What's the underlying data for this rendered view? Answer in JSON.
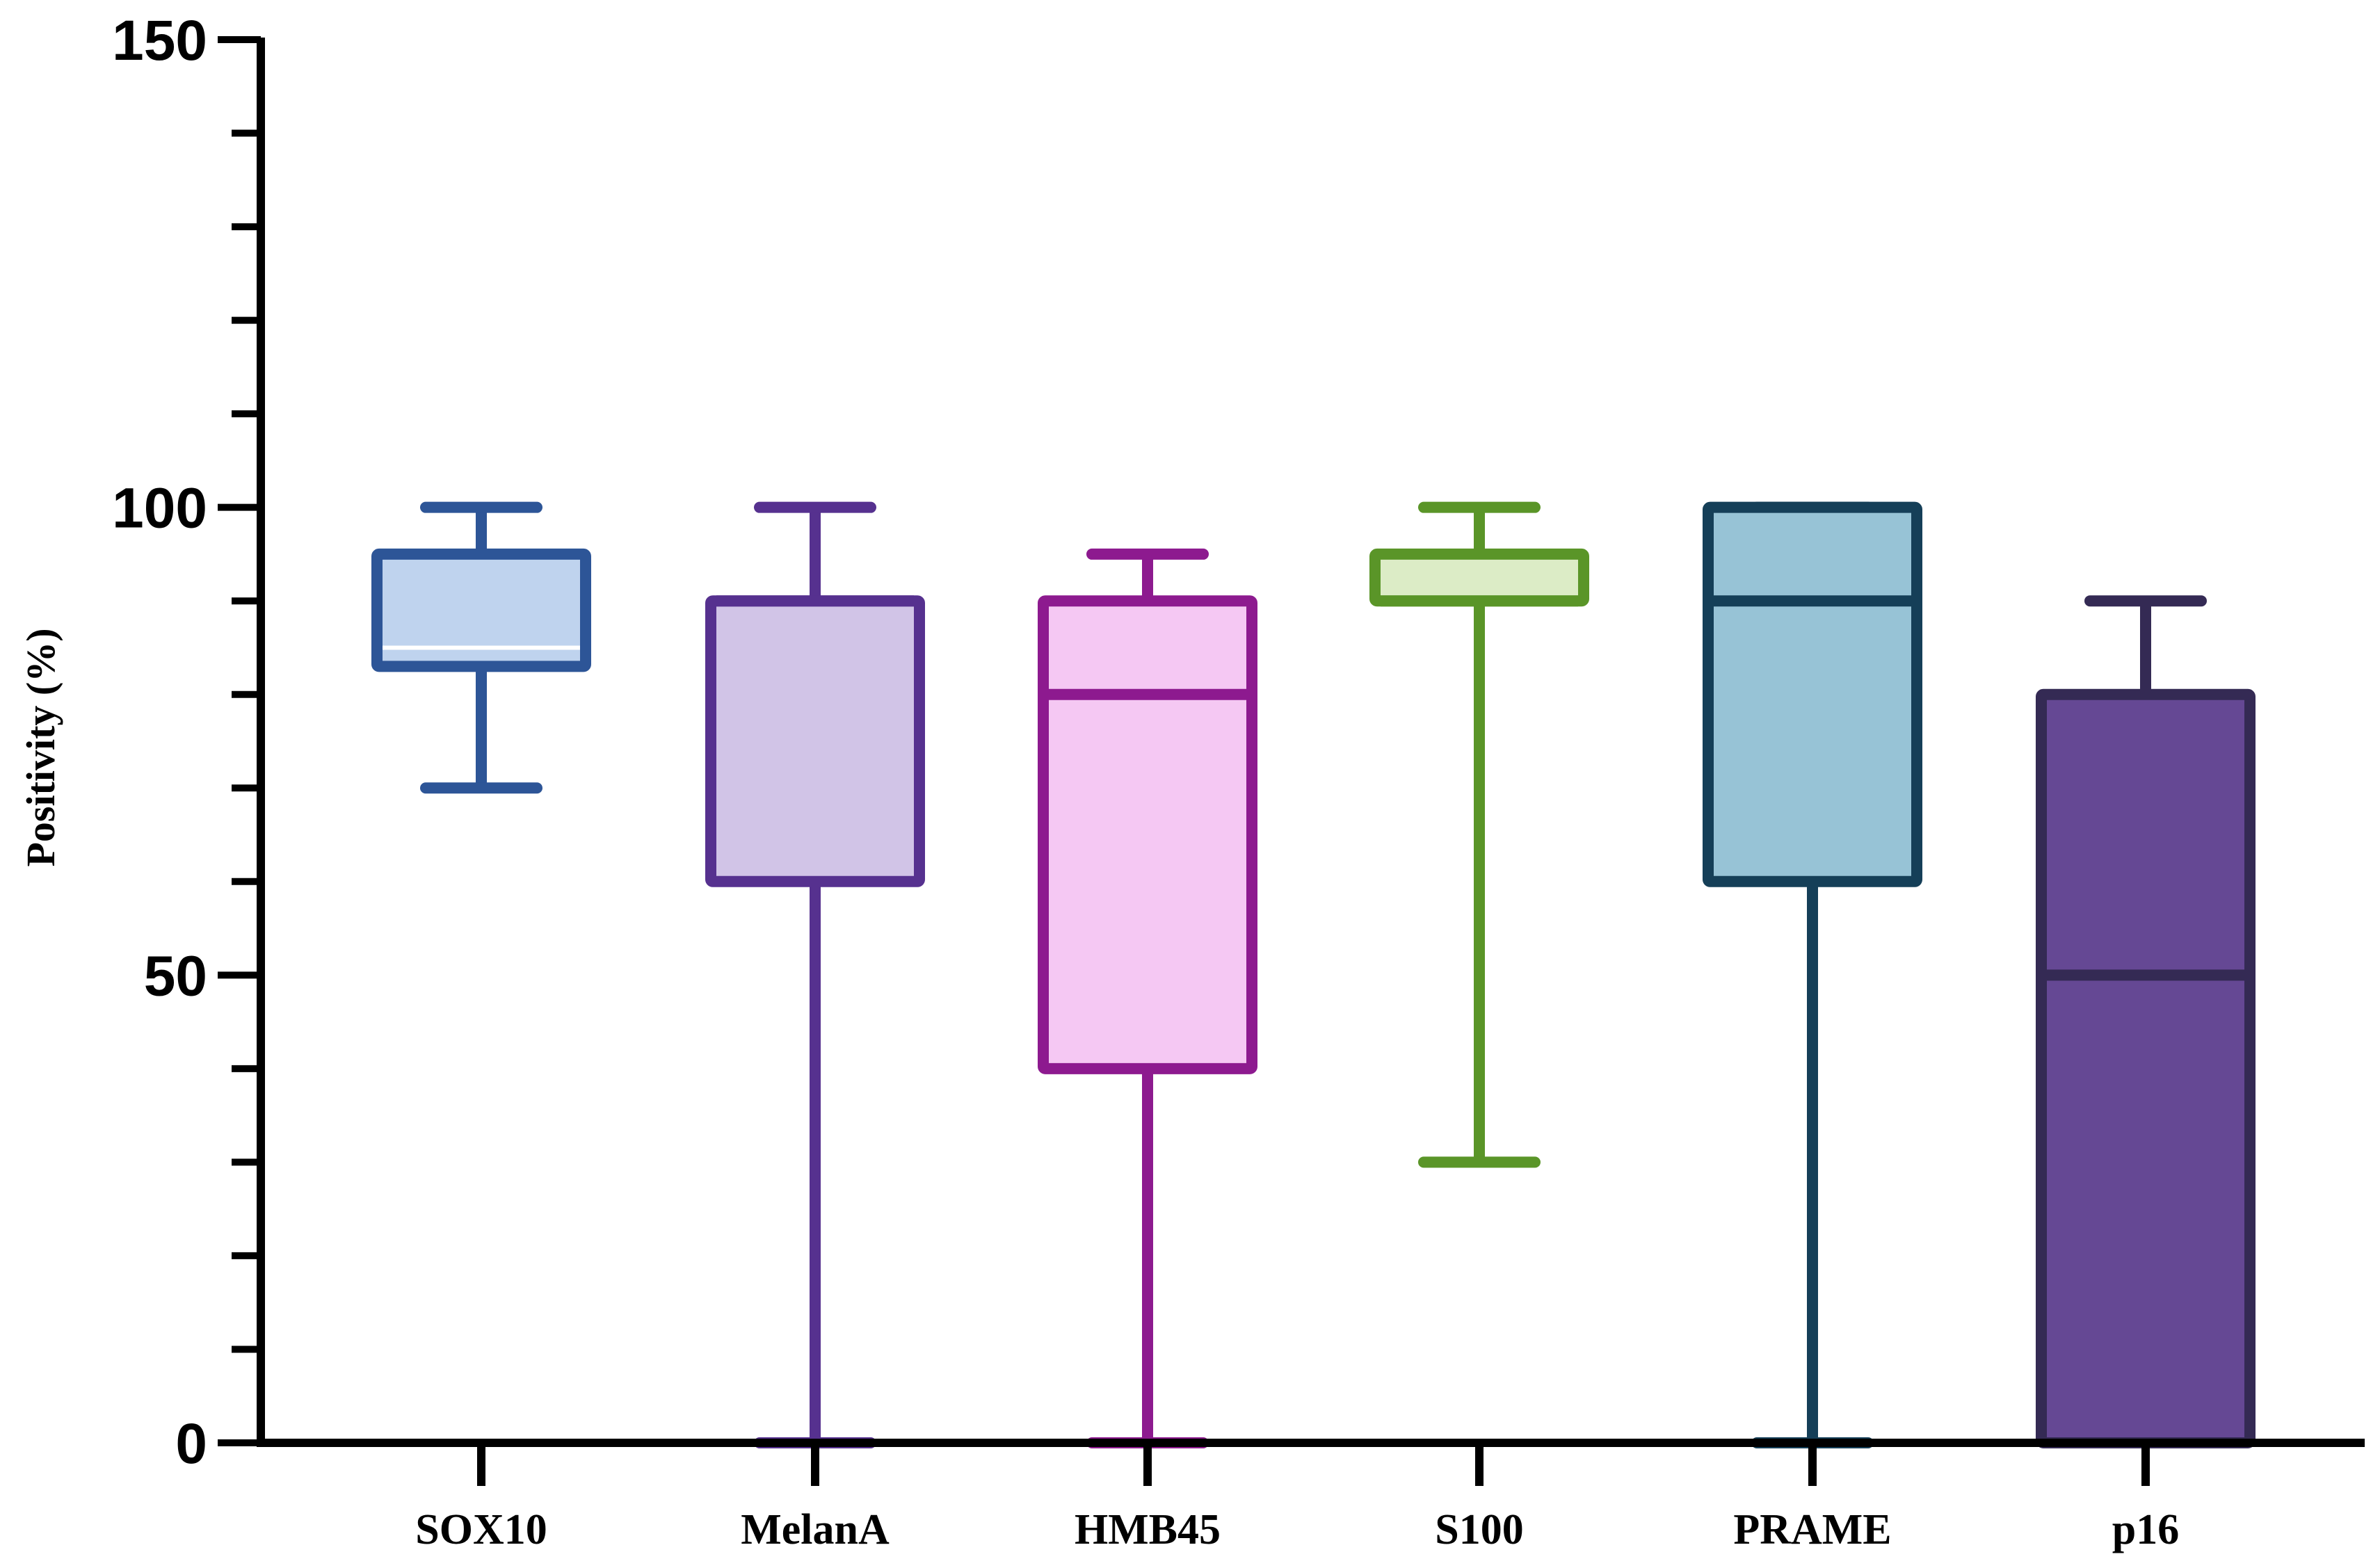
{
  "chart_data": {
    "type": "box",
    "title": "",
    "xlabel": "",
    "ylabel": "Positivity (%)",
    "ylim": [
      0,
      150
    ],
    "yticks_major": [
      0,
      50,
      100,
      150
    ],
    "yticks_minor_step": 10,
    "grid": false,
    "legend": "none",
    "categories": [
      "SOX10",
      "MelanA",
      "HMB45",
      "S100",
      "PRAME",
      "p16"
    ],
    "boxes": [
      {
        "category": "SOX10",
        "min": 70,
        "q1": 83,
        "median": 85,
        "q3": 95,
        "max": 100,
        "fill": "#bfd3ee",
        "stroke": "#2d5597",
        "median_stroke": "#ffffff"
      },
      {
        "category": "MelanA",
        "min": 0,
        "q1": 60,
        "median": 90,
        "q3": 90,
        "max": 100,
        "fill": "#d1c4e7",
        "stroke": "#56318f",
        "median_stroke": "#56318f"
      },
      {
        "category": "HMB45",
        "min": 0,
        "q1": 40,
        "median": 80,
        "q3": 90,
        "max": 95,
        "fill": "#f5c8f3",
        "stroke": "#8d1a8f",
        "median_stroke": "#8d1a8f"
      },
      {
        "category": "S100",
        "min": 30,
        "q1": 90,
        "median": 90,
        "q3": 95,
        "max": 100,
        "fill": "#dcecc6",
        "stroke": "#5a9528",
        "median_stroke": "#5a9528"
      },
      {
        "category": "PRAME",
        "min": 0,
        "q1": 60,
        "median": 90,
        "q3": 100,
        "max": 100,
        "fill": "#97c3d6",
        "stroke": "#153f58",
        "median_stroke": "#153f58"
      },
      {
        "category": "p16",
        "min": 0,
        "q1": 0,
        "median": 50,
        "q3": 80,
        "max": 90,
        "fill": "#654894",
        "stroke": "#342a54",
        "median_stroke": "#342a54"
      }
    ]
  }
}
